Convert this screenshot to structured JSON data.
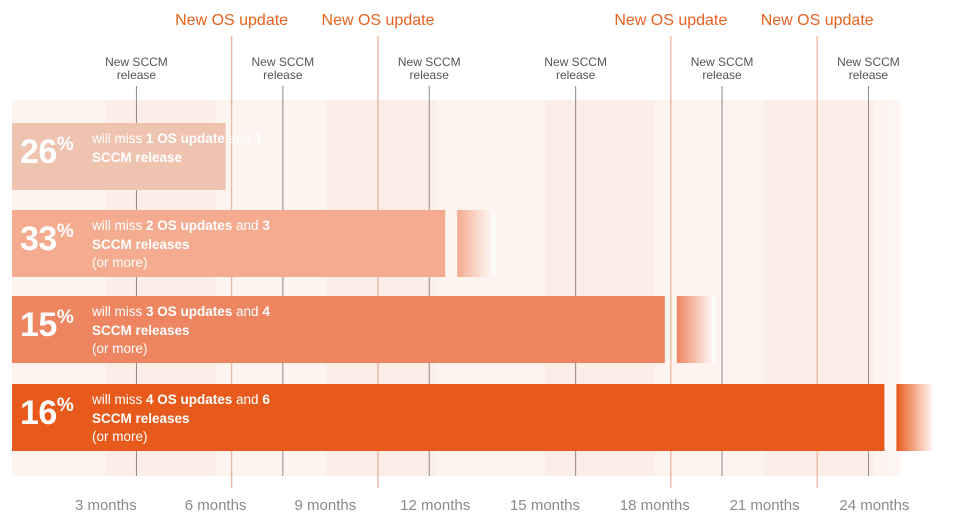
{
  "chart_data": {
    "type": "bar",
    "orientation": "horizontal",
    "xlabel": "",
    "ylabel": "",
    "x_ticks": [
      {
        "value": 3,
        "label": "3 months"
      },
      {
        "value": 6,
        "label": "6 months"
      },
      {
        "value": 9,
        "label": "9 months"
      },
      {
        "value": 12,
        "label": "12 months"
      },
      {
        "value": 15,
        "label": "15 months"
      },
      {
        "value": 18,
        "label": "18 months"
      },
      {
        "value": 21,
        "label": "21 months"
      },
      {
        "value": 24,
        "label": "24 months"
      }
    ],
    "xlim": [
      0,
      24
    ],
    "os_updates": {
      "label": "New OS update",
      "months": [
        6,
        10,
        18,
        22
      ]
    },
    "sccm_releases": {
      "label_line1": "New SCCM",
      "label_line2": "release",
      "months": [
        3.4,
        7.4,
        11.4,
        15.4,
        19.4,
        23.4
      ]
    },
    "bars": [
      {
        "percent": "26",
        "percent_sign": "%",
        "end_month": 6,
        "continues": false,
        "text_pre1": "will miss ",
        "bold1": "1 OS update",
        "text_mid": " and ",
        "bold2": "1 SCCM release",
        "text_post": "",
        "color": "#eec3b0"
      },
      {
        "percent": "33",
        "percent_sign": "%",
        "end_month": 12,
        "continues": true,
        "text_pre1": "will miss ",
        "bold1": "2 OS updates",
        "text_mid": " and ",
        "bold2": "3 SCCM releases",
        "text_post": "(or more)",
        "color": "#f4ab8f"
      },
      {
        "percent": "15",
        "percent_sign": "%",
        "end_month": 18,
        "continues": true,
        "text_pre1": "will miss ",
        "bold1": "3 OS updates",
        "text_mid": " and ",
        "bold2": "4 SCCM releases",
        "text_post": "(or more)",
        "color": "#ee8561"
      },
      {
        "percent": "16",
        "percent_sign": "%",
        "end_month": 24,
        "continues": true,
        "text_pre1": "will miss ",
        "bold1": "4 OS updates",
        "text_mid": " and ",
        "bold2": "6 SCCM releases",
        "text_post": "(or more)",
        "color": "#e85a1c"
      }
    ],
    "colors": {
      "os_update_text": "#e8621f",
      "os_update_line": "#ecb9a5",
      "sccm_text": "#555555",
      "sccm_line": "#8a8a8a",
      "tick_text": "#8a8a8a",
      "band_light": "#fdf4f0",
      "band_dark": "#fbe8e1"
    },
    "grid": false,
    "legend": "none"
  }
}
